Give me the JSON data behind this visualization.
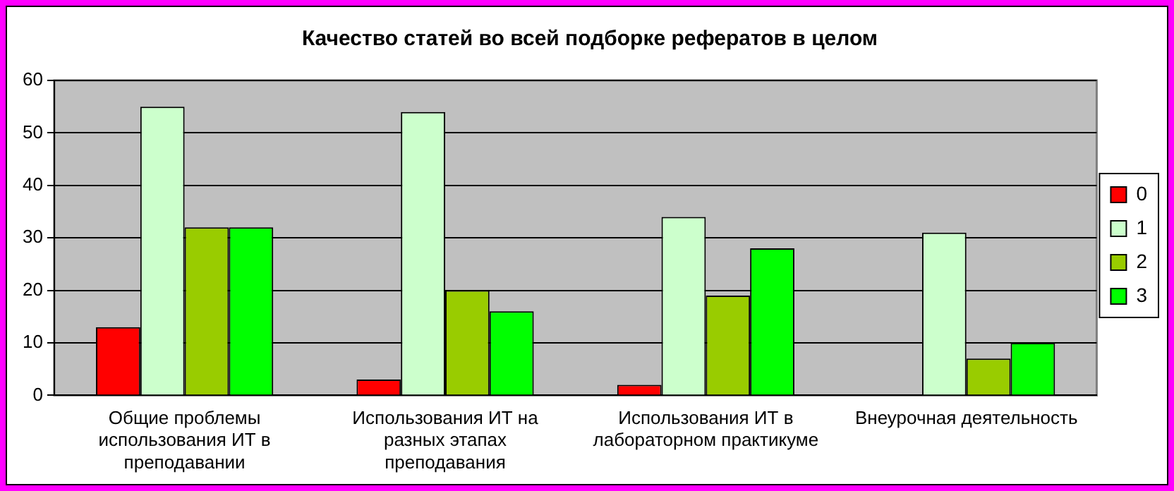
{
  "chart_data": {
    "type": "bar",
    "title": "Качество статей во всей подборке рефератов в целом",
    "categories": [
      "Общие проблемы использования ИТ в преподавании",
      "Использования ИТ на разных этапах преподавания",
      "Использования ИТ в лабораторном практикуме",
      "Внеурочная деятельность"
    ],
    "series": [
      {
        "name": "0",
        "color": "#ff0000",
        "values": [
          13,
          3,
          2,
          0
        ]
      },
      {
        "name": "1",
        "color": "#ccffcc",
        "values": [
          55,
          54,
          34,
          31
        ]
      },
      {
        "name": "2",
        "color": "#99cc00",
        "values": [
          32,
          20,
          19,
          7
        ]
      },
      {
        "name": "3",
        "color": "#00ff00",
        "values": [
          32,
          16,
          28,
          10
        ]
      }
    ],
    "ylim": [
      0,
      60
    ],
    "yticks": [
      0,
      10,
      20,
      30,
      40,
      50,
      60
    ],
    "grid": "y",
    "legend": "right"
  }
}
